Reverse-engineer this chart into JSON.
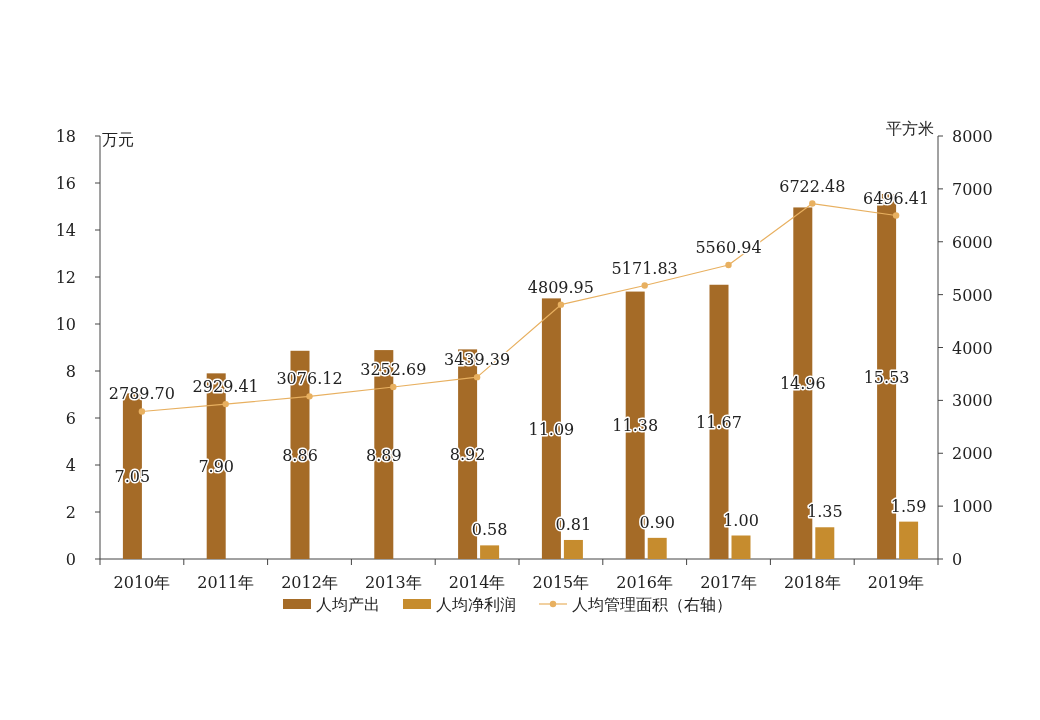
{
  "chart_data": {
    "type": "bar",
    "categories": [
      "2010年",
      "2011年",
      "2012年",
      "2013年",
      "2014年",
      "2015年",
      "2016年",
      "2017年",
      "2018年",
      "2019年"
    ],
    "ylabel": "万元",
    "y2label": "平方米",
    "ylim": [
      0,
      18
    ],
    "yticks": [
      0,
      2,
      4,
      6,
      8,
      10,
      12,
      14,
      16,
      18
    ],
    "y2lim": [
      0,
      8000
    ],
    "y2ticks": [
      0,
      1000,
      2000,
      3000,
      4000,
      5000,
      6000,
      7000,
      8000
    ],
    "series": [
      {
        "name": "人均产出",
        "color": "#a56b27",
        "values": [
          7.05,
          7.9,
          8.86,
          8.89,
          8.92,
          11.09,
          11.38,
          11.67,
          14.96,
          15.53
        ],
        "value_labels": [
          "7.05",
          "7.90",
          "8.86",
          "8.89",
          "8.92",
          "11.09",
          "11.38",
          "11.67",
          "14.96",
          "15.53"
        ]
      },
      {
        "name": "人均净利润",
        "color": "#c68c2e",
        "values": [
          null,
          null,
          null,
          null,
          0.58,
          0.81,
          0.9,
          1.0,
          1.35,
          1.59
        ],
        "value_labels": [
          null,
          null,
          null,
          null,
          "0.58",
          "0.81",
          "0.90",
          "1.00",
          "1.35",
          "1.59"
        ]
      },
      {
        "name": "人均管理面积（右轴）",
        "type": "line",
        "axis": "y2",
        "color": "#e8b060",
        "marker": "circle",
        "values": [
          2789.7,
          2929.41,
          3076.12,
          3252.69,
          3439.39,
          4809.95,
          5171.83,
          5560.94,
          6722.48,
          6496.41
        ],
        "value_labels": [
          "2789.70",
          "2929.41",
          "3076.12",
          "3252.69",
          "3439.39",
          "4809.95",
          "5171.83",
          "5560.94",
          "6722.48",
          "6496.41"
        ]
      }
    ],
    "legend": "bottom",
    "grid": false
  }
}
